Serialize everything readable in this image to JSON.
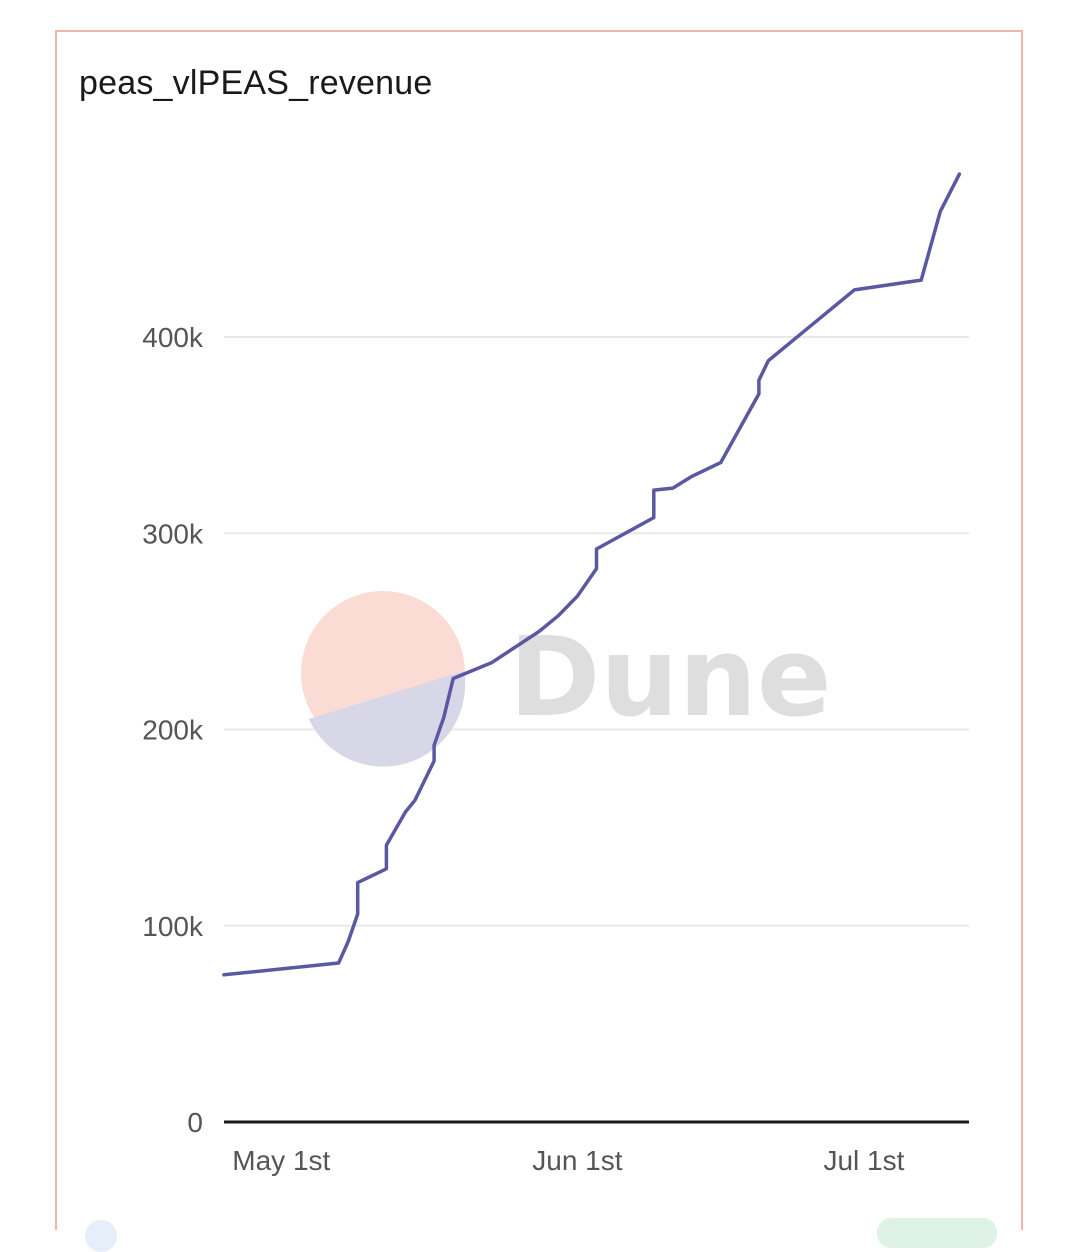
{
  "card": {
    "title": "peas_vlPEAS_revenue"
  },
  "watermark": {
    "text": "Dune",
    "logo_colors": {
      "top": "#fadcd5",
      "bottom": "#d8d7e8"
    }
  },
  "colors": {
    "line": "#5a58a0",
    "grid": "#e8e8ea",
    "axis": "#1a1a1a",
    "border": "#f3b5a8"
  },
  "chart_data": {
    "type": "line",
    "title": "peas_vlPEAS_revenue",
    "xlabel": "",
    "ylabel": "",
    "ylim": [
      0,
      480000
    ],
    "xlim": [
      "2024-04-25",
      "2024-07-12"
    ],
    "grid": true,
    "y_ticks": [
      {
        "value": 0,
        "label": "0"
      },
      {
        "value": 100000,
        "label": "100k"
      },
      {
        "value": 200000,
        "label": "200k"
      },
      {
        "value": 300000,
        "label": "300k"
      },
      {
        "value": 400000,
        "label": "400k"
      }
    ],
    "x_ticks": [
      {
        "value": "2024-05-01",
        "label": "May 1st"
      },
      {
        "value": "2024-06-01",
        "label": "Jun 1st"
      },
      {
        "value": "2024-07-01",
        "label": "Jul 1st"
      }
    ],
    "series": [
      {
        "points": [
          [
            "2024-04-25",
            75000
          ],
          [
            "2024-05-07",
            81000
          ],
          [
            "2024-05-08",
            92000
          ],
          [
            "2024-05-09",
            106000
          ],
          [
            "2024-05-09",
            122000
          ],
          [
            "2024-05-12",
            129000
          ],
          [
            "2024-05-12",
            141000
          ],
          [
            "2024-05-14",
            158000
          ],
          [
            "2024-05-15",
            164000
          ],
          [
            "2024-05-17",
            184000
          ],
          [
            "2024-05-17",
            192000
          ],
          [
            "2024-05-18",
            206000
          ],
          [
            "2024-05-19",
            226000
          ],
          [
            "2024-05-23",
            234000
          ],
          [
            "2024-05-28",
            250000
          ],
          [
            "2024-05-30",
            258000
          ],
          [
            "2024-06-01",
            268000
          ],
          [
            "2024-06-03",
            282000
          ],
          [
            "2024-06-03",
            292000
          ],
          [
            "2024-06-09",
            308000
          ],
          [
            "2024-06-09",
            322000
          ],
          [
            "2024-06-11",
            323000
          ],
          [
            "2024-06-13",
            329000
          ],
          [
            "2024-06-16",
            336000
          ],
          [
            "2024-06-20",
            371000
          ],
          [
            "2024-06-20",
            378000
          ],
          [
            "2024-06-21",
            388000
          ],
          [
            "2024-06-25",
            404000
          ],
          [
            "2024-06-30",
            424000
          ],
          [
            "2024-07-07",
            429000
          ],
          [
            "2024-07-09",
            464000
          ],
          [
            "2024-07-11",
            483000
          ]
        ]
      }
    ]
  }
}
